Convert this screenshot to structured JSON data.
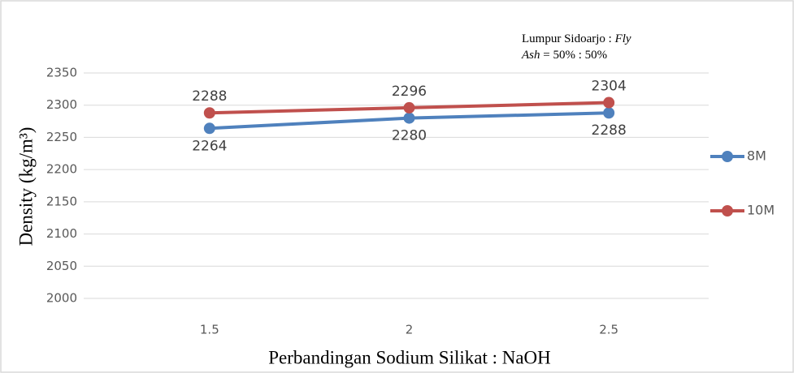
{
  "chart_data": {
    "type": "line",
    "annotation": [
      "Lumpur Sidoarjo : ",
      "Fly Ash",
      " = 50% : 50%"
    ],
    "x_label": "Perbandingan Sodium Silikat : NaOH",
    "y_label": "Density (kg/m³)",
    "categories": [
      "1.5",
      "2",
      "2.5"
    ],
    "series": [
      {
        "name": "8M",
        "color": "#4f81bd",
        "values": [
          2264,
          2280,
          2288
        ]
      },
      {
        "name": "10M",
        "color": "#c0504d",
        "values": [
          2288,
          2296,
          2304
        ]
      }
    ],
    "ylim": [
      2000,
      2350
    ],
    "yticks": [
      2000,
      2050,
      2100,
      2150,
      2200,
      2250,
      2300,
      2350
    ],
    "grid": true,
    "legend": "right"
  }
}
